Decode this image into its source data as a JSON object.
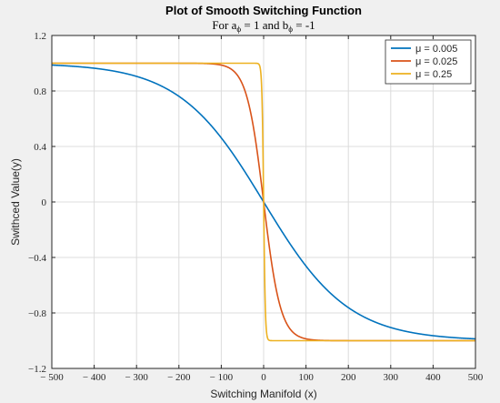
{
  "chart_data": {
    "type": "line",
    "title": "Plot of Smooth Switching Function",
    "subtitle_parts": {
      "prefix": "For a",
      "sub_a": "ϕ",
      "middle": " = 1 and b",
      "sub_b": "ϕ",
      "suffix": " = -1"
    },
    "xlabel": "Switching Manifold (x)",
    "ylabel": "Swithced Value(y)",
    "xlim": [
      -500,
      500
    ],
    "ylim": [
      -1.2,
      1.2
    ],
    "x_ticks": [
      -500,
      -400,
      -300,
      -200,
      -100,
      0,
      100,
      200,
      300,
      400,
      500
    ],
    "x_tick_labels": [
      "− 500",
      "− 400",
      "− 300",
      "− 200",
      "− 100",
      "0",
      "100",
      "200",
      "300",
      "400",
      "500"
    ],
    "y_ticks": [
      1.2,
      0.8,
      0.4,
      0,
      -0.4,
      -0.8,
      -1.2
    ],
    "y_tick_labels": [
      "1.2",
      "0.8",
      "0.4",
      "0",
      "−0.4",
      "−0.8",
      "−1.2"
    ],
    "grid": true,
    "legend_position": "top-right",
    "function": "y = -tanh(mu * x)",
    "series": [
      {
        "name": "μ = 0.005",
        "mu": 0.005,
        "color": "#0072bd"
      },
      {
        "name": "μ = 0.025",
        "mu": 0.025,
        "color": "#d95319"
      },
      {
        "name": "μ = 0.25",
        "mu": 0.25,
        "color": "#edb120"
      }
    ]
  }
}
